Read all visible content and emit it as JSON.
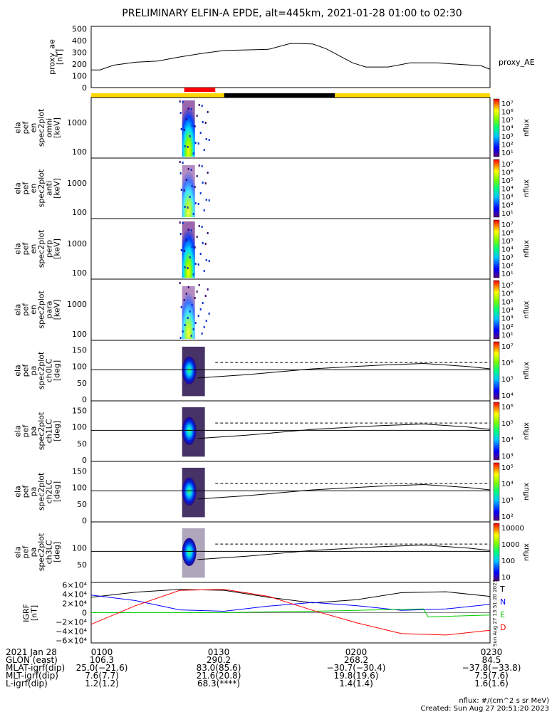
{
  "title": "PRELIMINARY ELFIN-A EPDE, alt=445km, 2021-01-28 01:00 to 02:30",
  "proxy_ae": {
    "ylabel_lines": [
      "proxy_ae",
      "[nT]"
    ],
    "yticks": [
      "500",
      "400",
      "300",
      "200",
      "100",
      "0"
    ],
    "legend": "proxy_AE",
    "ylim": [
      0,
      520
    ]
  },
  "spec_panels": [
    {
      "ylabel_lines": [
        "ela",
        "pef",
        "en",
        "spec2plot",
        "omni",
        "[keV]"
      ],
      "yticks": [
        "1000",
        "100"
      ],
      "cbar_ticks": [
        "10⁷",
        "10⁶",
        "10⁵",
        "10⁴",
        "10³",
        "10²",
        "10¹"
      ],
      "cbar_label": "nflux"
    },
    {
      "ylabel_lines": [
        "ela",
        "pef",
        "en",
        "spec2plot",
        "anti",
        "[keV]"
      ],
      "yticks": [
        "1000",
        "100"
      ],
      "cbar_ticks": [
        "10⁷",
        "10⁶",
        "10⁵",
        "10⁴",
        "10³",
        "10²",
        "10¹"
      ],
      "cbar_label": "nflux"
    },
    {
      "ylabel_lines": [
        "ela",
        "pef",
        "en",
        "spec2plot",
        "perp",
        "[keV]"
      ],
      "yticks": [
        "1000",
        "100"
      ],
      "cbar_ticks": [
        "10⁷",
        "10⁶",
        "10⁵",
        "10⁴",
        "10³",
        "10²",
        "10¹"
      ],
      "cbar_label": "nflux"
    },
    {
      "ylabel_lines": [
        "ela",
        "pef",
        "en",
        "spec2plot",
        "para",
        "[keV]"
      ],
      "yticks": [
        "1000",
        "100"
      ],
      "cbar_ticks": [
        "10⁷",
        "10⁶",
        "10⁵",
        "10⁴",
        "10³",
        "10²",
        "10¹"
      ],
      "cbar_label": "nflux"
    }
  ],
  "pa_panels": [
    {
      "ylabel_lines": [
        "ela",
        "pef",
        "pa",
        "spec2plot",
        "ch0LC",
        "[deg]"
      ],
      "yticks": [
        "150",
        "100",
        "50",
        "0"
      ],
      "cbar_ticks": [
        "10⁷",
        "10⁶",
        "10⁵",
        "10⁴"
      ],
      "cbar_label": "nflux"
    },
    {
      "ylabel_lines": [
        "ela",
        "pef",
        "pa",
        "spec2plot",
        "ch1LC",
        "[deg]"
      ],
      "yticks": [
        "150",
        "100",
        "50",
        "0"
      ],
      "cbar_ticks": [
        "10⁶",
        "10⁵",
        "10⁴",
        "10³"
      ],
      "cbar_label": "nflux"
    },
    {
      "ylabel_lines": [
        "ela",
        "pef",
        "pa",
        "spec2plot",
        "ch2LC",
        "[deg]"
      ],
      "yticks": [
        "150",
        "100",
        "50",
        "0"
      ],
      "cbar_ticks": [
        "10⁵",
        "10⁴",
        "10³",
        "10²"
      ],
      "cbar_label": "nflux"
    },
    {
      "ylabel_lines": [
        "ela",
        "pef",
        "pa",
        "spec2plot",
        "ch3LC",
        "[deg]"
      ],
      "yticks": [
        "100",
        "50"
      ],
      "cbar_ticks": [
        "10000",
        "1000",
        "100",
        "10"
      ],
      "cbar_label": "nflux"
    }
  ],
  "igrf": {
    "ylabel_lines": [
      "IGRF",
      "[nT]"
    ],
    "yticks": [
      "6×10⁴",
      "4×10⁴",
      "2×10⁴",
      "0",
      "−2×10⁴",
      "−4×10⁴",
      "−6×10⁴"
    ],
    "legend": [
      {
        "label": "T",
        "color": "#000000"
      },
      {
        "label": "N",
        "color": "#0000ff"
      },
      {
        "label": "E",
        "color": "#00cc00"
      },
      {
        "label": "D",
        "color": "#ff0000"
      }
    ],
    "side_stamp": "Sun Aug 27 13:51:20 2023"
  },
  "footer": {
    "rows": [
      [
        "2021 Jan 28",
        "0100",
        "0130",
        "0200",
        "0230"
      ],
      [
        "GLON (east)",
        "106.3",
        "290.2",
        "268.2",
        "84.5"
      ],
      [
        "MLAT-igrf(dip)",
        "25.0(−21.6)",
        "83.0(85.6)",
        "−30.7(−30.4)",
        "−37.8(−33.8)"
      ],
      [
        "MLT-igrf(dip)",
        "7.6(7.7)",
        "21.6(20.8)",
        "19.8(19.6)",
        "7.5(7.6)"
      ],
      [
        "L-igrf(dip)",
        "1.2(1.2)",
        "68.3(****)",
        "1.4(1.4)",
        "1.6(1.6)"
      ]
    ],
    "units_note": "nflux: #/(cm^2 s sr MeV)",
    "created": "Created: Sun Aug 27 20:51:20 2023"
  },
  "colors": {
    "sci_zone": "#ff0000",
    "day_bar": "#ffd700",
    "night_bar": "#000000",
    "trace_T": "#000000",
    "trace_N": "#0000ff",
    "trace_E": "#00cc00",
    "trace_D": "#ff0000"
  },
  "chart_data": {
    "type": "line",
    "title": "PRELIMINARY ELFIN-A EPDE, alt=445km, 2021-01-28 01:00 to 02:30",
    "x_time_ticks": [
      "0100",
      "0130",
      "0200",
      "0230"
    ],
    "proxy_ae": {
      "name": "proxy_AE",
      "t": [
        "01:00",
        "01:02",
        "01:05",
        "01:10",
        "01:15",
        "01:20",
        "01:25",
        "01:30",
        "01:35",
        "01:40",
        "01:45",
        "01:50",
        "01:53",
        "01:56",
        "01:59",
        "02:02",
        "02:07",
        "02:12",
        "02:18",
        "02:24",
        "02:28",
        "02:30"
      ],
      "values": [
        150,
        150,
        190,
        215,
        225,
        260,
        290,
        315,
        320,
        325,
        375,
        370,
        330,
        270,
        210,
        175,
        175,
        210,
        210,
        195,
        185,
        155
      ],
      "ylim": [
        0,
        520
      ]
    },
    "status_bar": {
      "day_start": "01:00",
      "night_start": "01:30",
      "night_end": "01:55",
      "day_end": "02:30",
      "sci_zone": [
        "01:21",
        "01:28"
      ]
    },
    "pitch_angle_lines": {
      "solid_90": 90,
      "dashed_after": {
        "start": "01:28",
        "value": 112
      },
      "loss_cone": {
        "t": [
          "01:24",
          "01:35",
          "01:50",
          "02:05",
          "02:15",
          "02:25",
          "02:30"
        ],
        "values": [
          65,
          75,
          93,
          104,
          109,
          100,
          93
        ]
      }
    },
    "igrf": {
      "ylim": [
        -65000,
        65000
      ],
      "series": [
        {
          "name": "T",
          "t": [
            "01:00",
            "01:10",
            "01:20",
            "01:30",
            "01:40",
            "01:50",
            "02:00",
            "02:10",
            "02:20",
            "02:30"
          ],
          "values": [
            33000,
            44000,
            50000,
            48000,
            33000,
            21000,
            28000,
            43000,
            45000,
            35000
          ]
        },
        {
          "name": "N",
          "t": [
            "01:00",
            "01:10",
            "01:20",
            "01:30",
            "01:40",
            "01:50",
            "02:00",
            "02:10",
            "02:20",
            "02:30"
          ],
          "values": [
            38000,
            26000,
            6000,
            3000,
            14000,
            22000,
            15000,
            5000,
            8000,
            18000
          ]
        },
        {
          "name": "E",
          "t": [
            "01:00",
            "01:10",
            "01:20",
            "01:30",
            "01:40",
            "01:50",
            "02:00",
            "02:10",
            "02:15",
            "02:16",
            "02:30"
          ],
          "values": [
            0,
            0,
            0,
            0,
            2000,
            3000,
            5000,
            7000,
            8000,
            -9000,
            -5000
          ]
        },
        {
          "name": "D",
          "t": [
            "01:00",
            "01:10",
            "01:20",
            "01:30",
            "01:40",
            "01:50",
            "02:00",
            "02:10",
            "02:20",
            "02:30"
          ],
          "values": [
            -25000,
            15000,
            48000,
            50000,
            35000,
            5000,
            -22000,
            -45000,
            -48000,
            -38000
          ]
        }
      ]
    }
  }
}
